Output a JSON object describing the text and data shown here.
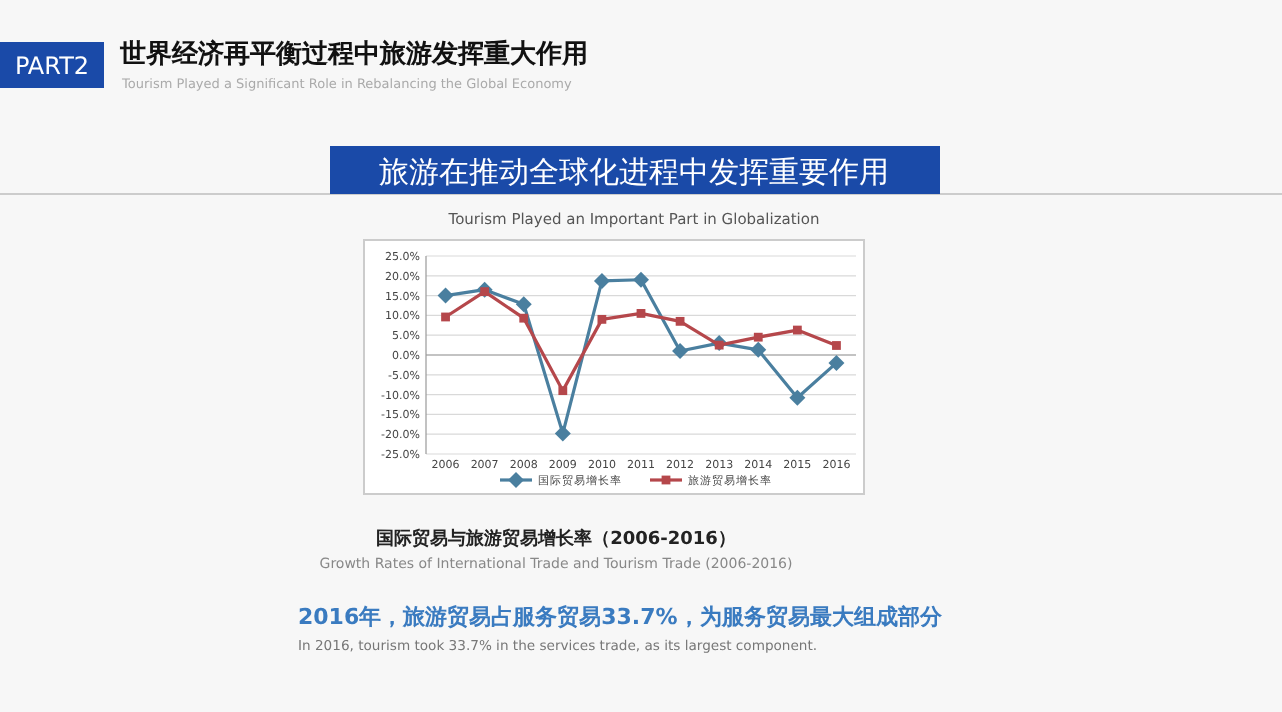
{
  "chart_data": {
    "type": "line",
    "title": "旅游在推动全球化进程中发挥重要作用",
    "subtitle": "Tourism Played an Important Part in Globalization",
    "annotations": [
      "PART2",
      "世界经济再平衡过程中旅游发挥重大作用",
      "Tourism Played a Significant Role in Rebalancing the Global Economy",
      "国际贸易与旅游贸易增长率（2006-2016）",
      "Growth Rates of International Trade and Tourism Trade (2006-2016)",
      "2016年，旅游贸易占服务贸易33.7%，为服务贸易最大组成部分",
      "In 2016, tourism took 33.7% in the services trade, as its largest component."
    ],
    "categories": [
      "2006",
      "2007",
      "2008",
      "2009",
      "2010",
      "2011",
      "2012",
      "2013",
      "2014",
      "2015",
      "2016"
    ],
    "series": [
      {
        "name": "国际贸易增长率",
        "color": "#4a7f9f",
        "marker": "diamond",
        "values": [
          15,
          16.5,
          12.8,
          -19.8,
          18.7,
          19,
          1,
          3,
          1.3,
          -10.8,
          -2
        ]
      },
      {
        "name": "旅游贸易增长率",
        "color": "#b5474b",
        "marker": "square",
        "values": [
          9.6,
          16,
          9.3,
          -9,
          9,
          10.5,
          8.5,
          2.5,
          4.5,
          6.3,
          2.4
        ]
      }
    ],
    "ylim": [
      -25,
      25
    ],
    "yticks": [
      {
        "value": 25,
        "label": "25.0%"
      },
      {
        "value": 20,
        "label": "20.0%"
      },
      {
        "value": 15,
        "label": "15.0%"
      },
      {
        "value": 10,
        "label": "10.0%"
      },
      {
        "value": 5,
        "label": "5.0%"
      },
      {
        "value": 0,
        "label": "0.0%"
      },
      {
        "value": -5,
        "label": "-5.0%"
      },
      {
        "value": -10,
        "label": "-10.0%"
      },
      {
        "value": -15,
        "label": "-15.0%"
      },
      {
        "value": -20,
        "label": "-20.0%"
      },
      {
        "value": -25,
        "label": "-25.0%"
      }
    ],
    "grid": "y",
    "legend": "bottom",
    "line_style": "solid"
  }
}
